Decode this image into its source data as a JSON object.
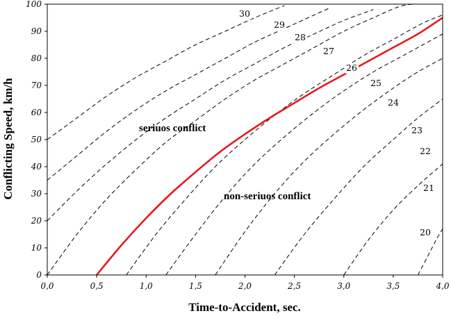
{
  "chart_data": {
    "type": "line",
    "title": "",
    "xlabel": "Time-to-Accident, sec.",
    "ylabel": "Conflicting Speed, km/h",
    "xlim": [
      0,
      4
    ],
    "ylim": [
      0,
      100
    ],
    "x_ticks": [
      "0,0",
      "0,5",
      "1,0",
      "1,5",
      "2,0",
      "2,5",
      "3,0",
      "3,5",
      "4,0"
    ],
    "y_ticks": [
      "0",
      "10",
      "20",
      "30",
      "40",
      "50",
      "60",
      "70",
      "80",
      "90",
      "100"
    ],
    "grid": false,
    "reference_curves": [
      {
        "label": "20",
        "x": [
          3.75,
          3.85,
          3.95,
          4.0
        ],
        "y": [
          0,
          7,
          14,
          17
        ]
      },
      {
        "label": "21",
        "x": [
          3.0,
          3.25,
          3.5,
          3.75,
          4.0
        ],
        "y": [
          0,
          13,
          24,
          33,
          41
        ]
      },
      {
        "label": "22",
        "x": [
          2.3,
          2.6,
          2.9,
          3.2,
          3.5,
          3.75,
          4.0
        ],
        "y": [
          0,
          15,
          28,
          40,
          50,
          58,
          65
        ]
      },
      {
        "label": "23",
        "x": [
          1.7,
          2.0,
          2.3,
          2.6,
          2.9,
          3.2,
          3.5,
          3.75,
          4.0
        ],
        "y": [
          0,
          16,
          30,
          42,
          52,
          61,
          69,
          75,
          80
        ]
      },
      {
        "label": "24",
        "x": [
          1.2,
          1.5,
          1.8,
          2.1,
          2.4,
          2.7,
          3.0,
          3.3,
          3.6,
          3.8,
          4.0
        ],
        "y": [
          0,
          15,
          29,
          41,
          51,
          60,
          68,
          75,
          81,
          85,
          89
        ]
      },
      {
        "label": "25",
        "x": [
          0.8,
          1.1,
          1.4,
          1.7,
          2.0,
          2.3,
          2.6,
          2.9,
          3.2,
          3.5,
          3.8,
          4.0
        ],
        "y": [
          0,
          15,
          28,
          40,
          50,
          59,
          67,
          74,
          81,
          87,
          93,
          96
        ]
      },
      {
        "label": "27",
        "x": [
          0.0,
          0.3,
          0.6,
          0.9,
          1.2,
          1.5,
          1.8,
          2.1,
          2.4,
          2.7,
          3.0,
          3.3,
          3.6,
          3.85
        ],
        "y": [
          0,
          15,
          28,
          39,
          49,
          57,
          65,
          72,
          78,
          84,
          90,
          95,
          99.5,
          100
        ]
      },
      {
        "label": "28",
        "x": [
          0.0,
          0.3,
          0.6,
          0.9,
          1.2,
          1.5,
          1.8,
          2.1,
          2.4,
          2.7,
          3.0,
          3.3
        ],
        "y": [
          20,
          31,
          41,
          50,
          58,
          65,
          72,
          78,
          84,
          89,
          94,
          98
        ]
      },
      {
        "label": "29",
        "x": [
          0.0,
          0.3,
          0.6,
          0.9,
          1.2,
          1.5,
          1.8,
          2.1,
          2.4,
          2.7,
          2.85
        ],
        "y": [
          35,
          44,
          53,
          61,
          68,
          74,
          80,
          86,
          91,
          96,
          98.5
        ]
      },
      {
        "label": "30",
        "x": [
          0.0,
          0.3,
          0.6,
          0.9,
          1.2,
          1.5,
          1.8,
          2.1,
          2.4
        ],
        "y": [
          50,
          58,
          66,
          73,
          79,
          85,
          90,
          95,
          99.5
        ]
      }
    ],
    "series": [
      {
        "label": "26",
        "color": "#e8181c",
        "x": [
          0.5,
          0.75,
          1.0,
          1.25,
          1.5,
          1.75,
          2.0,
          2.25,
          2.5,
          2.75,
          3.0,
          3.25,
          3.5,
          3.75,
          4.0
        ],
        "y": [
          0,
          11,
          21,
          30,
          38,
          45.5,
          52,
          58,
          63.5,
          69,
          74,
          79,
          84,
          89,
          95
        ]
      }
    ],
    "annotations": [
      "seriuos  conflict",
      "non-seriuos  conflict"
    ]
  }
}
